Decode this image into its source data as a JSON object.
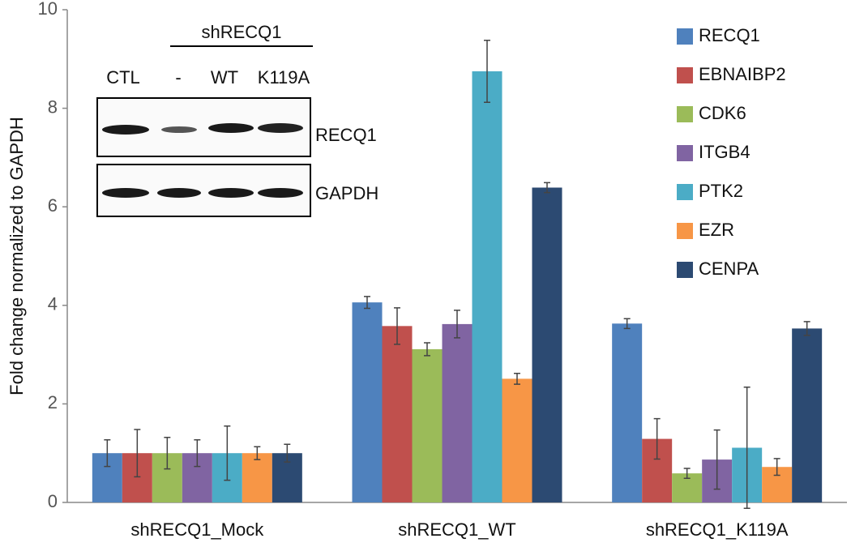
{
  "chart_data": {
    "type": "bar",
    "y_label": "Fold change normalized to GAPDH",
    "categories": [
      "shRECQ1_Mock",
      "shRECQ1_WT",
      "shRECQ1_K119A"
    ],
    "series": [
      {
        "name": "RECQ1",
        "color": "#4f81bd",
        "values": [
          1.0,
          4.06,
          3.63
        ],
        "errors": [
          0.27,
          0.12,
          0.1
        ]
      },
      {
        "name": "EBNAIBP2",
        "color": "#c0504d",
        "values": [
          1.0,
          3.58,
          1.29
        ],
        "errors": [
          0.48,
          0.37,
          0.41
        ]
      },
      {
        "name": "CDK6",
        "color": "#9bbb59",
        "values": [
          1.0,
          3.11,
          0.59
        ],
        "errors": [
          0.32,
          0.13,
          0.1
        ]
      },
      {
        "name": "ITGB4",
        "color": "#8064a2",
        "values": [
          1.0,
          3.62,
          0.87
        ],
        "errors": [
          0.27,
          0.28,
          0.6
        ]
      },
      {
        "name": "PTK2",
        "color": "#4bacc6",
        "values": [
          1.0,
          8.75,
          1.11
        ],
        "errors": [
          0.55,
          0.63,
          1.23
        ]
      },
      {
        "name": "EZR",
        "color": "#f79646",
        "values": [
          1.0,
          2.51,
          0.72
        ],
        "errors": [
          0.13,
          0.11,
          0.17
        ]
      },
      {
        "name": "CENPA",
        "color": "#2c4a72",
        "values": [
          1.0,
          6.39,
          3.53
        ],
        "errors": [
          0.18,
          0.1,
          0.14
        ]
      }
    ],
    "ylim": [
      0,
      10
    ],
    "yticks": [
      0,
      2,
      4,
      6,
      8,
      10
    ],
    "grid": false,
    "legend": "upper right",
    "inset": {
      "group_label": "shRECQ1",
      "lanes": [
        "CTL",
        "-",
        "WT",
        "K119A"
      ],
      "rows": [
        "RECQ1",
        "GAPDH"
      ]
    }
  }
}
